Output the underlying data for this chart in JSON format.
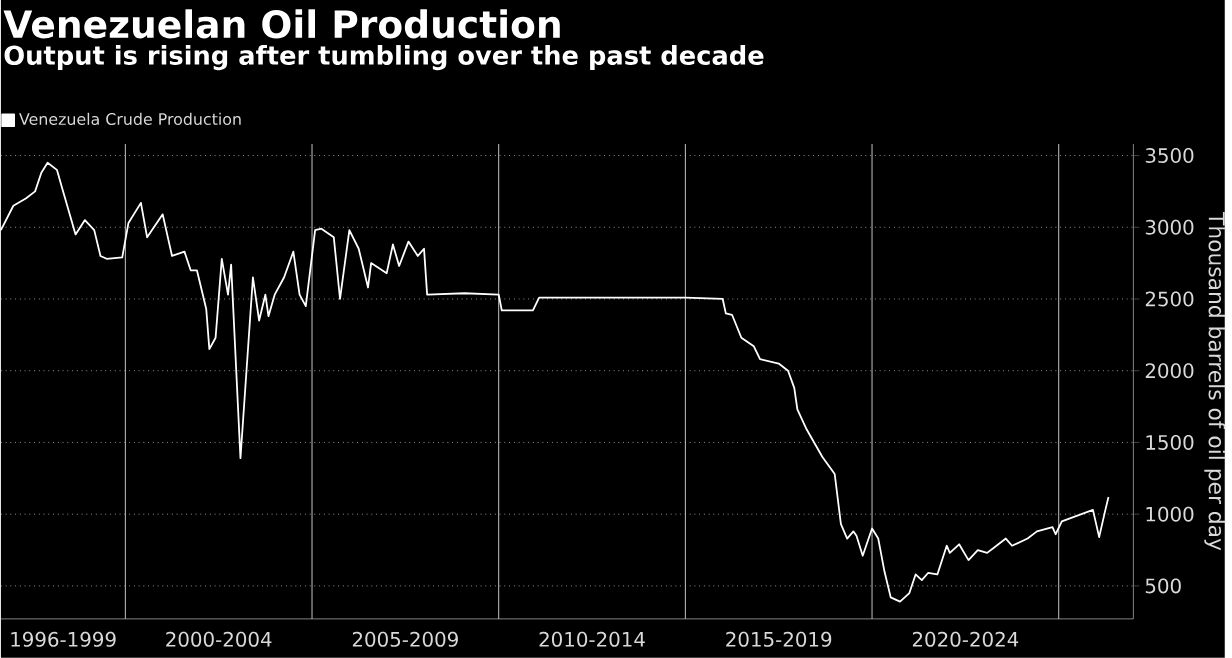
{
  "chart_data": {
    "type": "line",
    "title": "Venezuelan Oil Production",
    "subtitle": "Output is rising after tumbling over the past decade",
    "ylabel": "Thousand barrels of oil per day",
    "series": [
      {
        "name": "Venezuela Crude Production",
        "color": "#ffffff",
        "x": [
          "1996-09",
          "1997-01",
          "1997-05",
          "1997-08",
          "1997-10",
          "1997-12",
          "1998-03",
          "1998-05",
          "1998-09",
          "1998-12",
          "1999-03",
          "1999-05",
          "1999-07",
          "1999-12",
          "2000-02",
          "2000-06",
          "2000-08",
          "2001-01",
          "2001-04",
          "2001-08",
          "2001-10",
          "2001-12",
          "2002-03",
          "2002-04",
          "2002-06",
          "2002-08",
          "2002-10",
          "2002-11",
          "2003-02",
          "2003-06",
          "2003-08",
          "2003-10",
          "2003-11",
          "2004-01",
          "2004-04",
          "2004-07",
          "2004-09",
          "2004-11",
          "2005-02",
          "2005-04",
          "2005-08",
          "2005-10",
          "2006-01",
          "2006-04",
          "2006-07",
          "2006-08",
          "2007-01",
          "2007-03",
          "2007-05",
          "2007-08",
          "2007-11",
          "2008-01",
          "2008-02",
          "2009-02",
          "2010-01",
          "2010-02",
          "2010-12",
          "2011-02",
          "2015-01",
          "2016-01",
          "2016-02",
          "2016-04",
          "2016-07",
          "2016-11",
          "2017-01",
          "2017-07",
          "2017-10",
          "2017-12",
          "2018-01",
          "2018-04",
          "2018-09",
          "2019-01",
          "2019-03",
          "2019-05",
          "2019-07",
          "2019-08",
          "2019-10",
          "2020-01",
          "2020-03",
          "2020-05",
          "2020-07",
          "2020-10",
          "2021-01",
          "2021-03",
          "2021-05",
          "2021-07",
          "2021-10",
          "2022-01",
          "2022-02",
          "2022-05",
          "2022-08",
          "2022-11",
          "2023-02",
          "2023-05",
          "2023-08",
          "2023-10",
          "2024-03",
          "2024-06",
          "2024-11",
          "2024-12",
          "2025-02",
          "2025-12",
          "2026-02",
          "2026-04",
          "2026-05"
        ],
        "values": [
          2980,
          3150,
          3200,
          3250,
          3380,
          3450,
          3400,
          3250,
          2950,
          3050,
          2980,
          2800,
          2780,
          2790,
          3030,
          3170,
          2930,
          3090,
          2800,
          2830,
          2700,
          2700,
          2430,
          2150,
          2230,
          2780,
          2530,
          2740,
          1390,
          2650,
          2350,
          2530,
          2380,
          2530,
          2650,
          2830,
          2530,
          2450,
          2980,
          2990,
          2930,
          2500,
          2980,
          2850,
          2580,
          2750,
          2680,
          2880,
          2730,
          2900,
          2800,
          2850,
          2530,
          2540,
          2530,
          2420,
          2420,
          2510,
          2510,
          2500,
          2400,
          2390,
          2230,
          2170,
          2080,
          2050,
          2000,
          1880,
          1730,
          1590,
          1400,
          1280,
          930,
          830,
          880,
          850,
          710,
          900,
          830,
          600,
          420,
          390,
          450,
          580,
          540,
          590,
          580,
          780,
          730,
          790,
          680,
          750,
          730,
          780,
          830,
          780,
          830,
          880,
          910,
          860,
          950,
          1030,
          840,
          1030,
          1120
        ]
      }
    ],
    "xlim": [
      "1996-09",
      "2027-01"
    ],
    "xticks": [
      {
        "value": "1998-05",
        "label": "1996-1999"
      },
      {
        "value": "2000-01",
        "label": null
      },
      {
        "value": "2002-07",
        "label": "2000-2004"
      },
      {
        "value": "2005-01",
        "label": null
      },
      {
        "value": "2007-07",
        "label": "2005-2009"
      },
      {
        "value": "2010-01",
        "label": null
      },
      {
        "value": "2012-07",
        "label": "2010-2014"
      },
      {
        "value": "2015-01",
        "label": null
      },
      {
        "value": "2017-07",
        "label": "2015-2019"
      },
      {
        "value": "2020-01",
        "label": null
      },
      {
        "value": "2022-07",
        "label": "2020-2024"
      },
      {
        "value": "2025-01",
        "label": null
      }
    ],
    "ylim": [
      270,
      3580
    ],
    "yticks": [
      500,
      1000,
      1500,
      2000,
      2500,
      3000,
      3500
    ],
    "grid": true,
    "legend": "top left"
  }
}
